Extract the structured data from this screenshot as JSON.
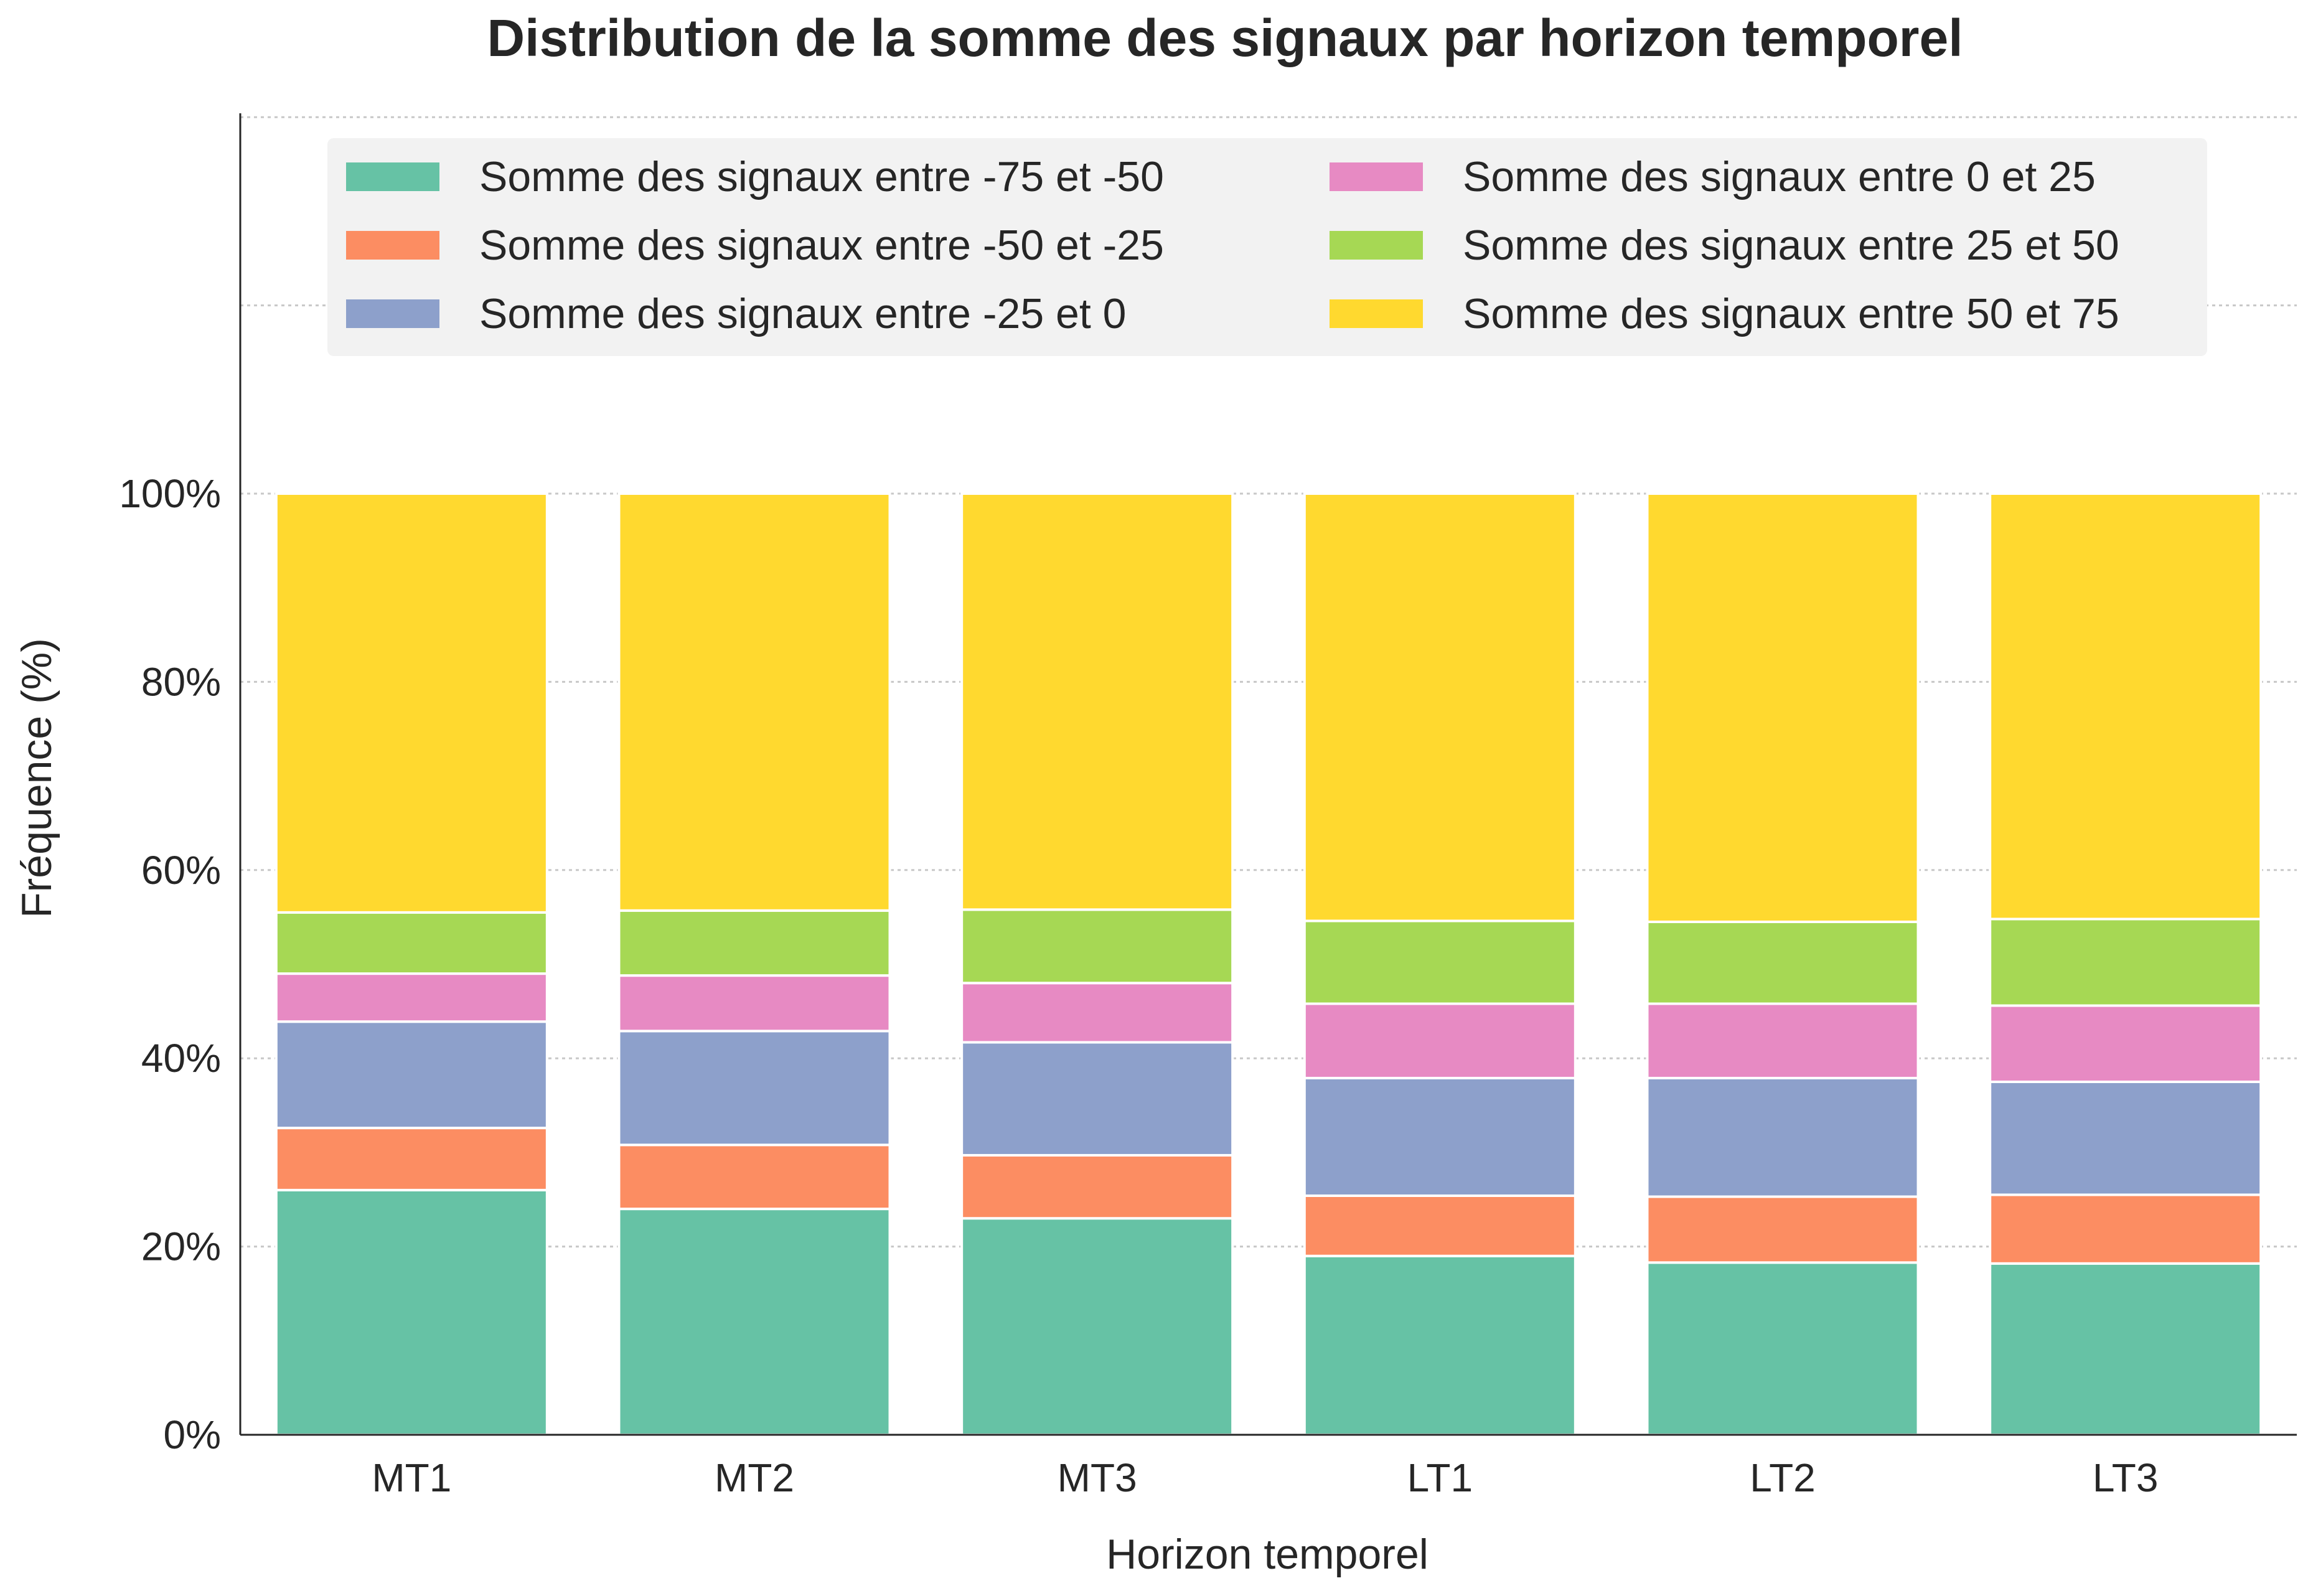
{
  "chart_data": {
    "type": "bar",
    "stacked": true,
    "title": "Distribution de la somme des signaux par horizon temporel",
    "xlabel": "Horizon temporel",
    "ylabel": "Fréquence (%)",
    "ylim": [
      0,
      140
    ],
    "yticks": [
      0,
      20,
      40,
      60,
      80,
      100
    ],
    "ytick_labels": [
      "0%",
      "20%",
      "40%",
      "60%",
      "80%",
      "100%"
    ],
    "grid": true,
    "legend_position": "top",
    "categories": [
      "MT1",
      "MT2",
      "MT3",
      "LT1",
      "LT2",
      "LT3"
    ],
    "series": [
      {
        "name": "Somme des signaux entre -75 et -50",
        "color": "#66c2a5",
        "values": [
          26.0,
          24.0,
          23.0,
          19.0,
          18.3,
          18.2
        ]
      },
      {
        "name": "Somme des signaux entre -50 et -25",
        "color": "#fc8d62",
        "values": [
          6.6,
          6.8,
          6.7,
          6.4,
          7.0,
          7.3
        ]
      },
      {
        "name": "Somme des signaux entre -25 et 0",
        "color": "#8da0cb",
        "values": [
          11.3,
          12.1,
          12.0,
          12.5,
          12.6,
          12.0
        ]
      },
      {
        "name": "Somme des signaux entre 0 et 25",
        "color": "#e78ac3",
        "values": [
          5.1,
          5.9,
          6.3,
          7.9,
          7.9,
          8.1
        ]
      },
      {
        "name": "Somme des signaux entre 25 et 50",
        "color": "#a6d854",
        "values": [
          6.5,
          6.9,
          7.8,
          8.8,
          8.7,
          9.2
        ]
      },
      {
        "name": "Somme des signaux entre 50 et 75",
        "color": "#ffd92f",
        "values": [
          44.5,
          44.3,
          44.2,
          45.4,
          45.5,
          45.2
        ]
      }
    ]
  }
}
